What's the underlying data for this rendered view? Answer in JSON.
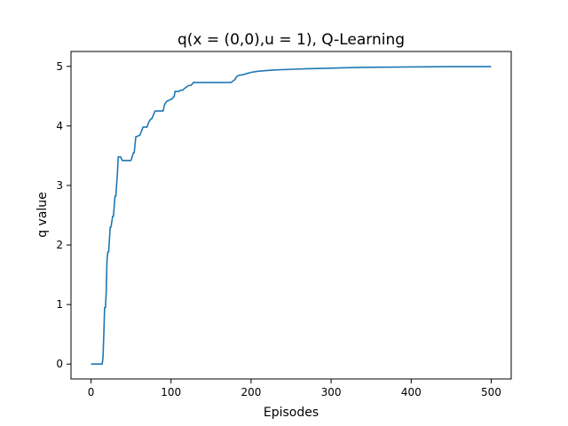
{
  "chart_data": {
    "type": "line",
    "title": "q(x = (0,0),u = 1), Q-Learning",
    "xlabel": "Episodes",
    "ylabel": "q value",
    "xlim": [
      -25,
      525
    ],
    "ylim": [
      -0.25,
      5.25
    ],
    "xticks": [
      0,
      100,
      200,
      300,
      400,
      500
    ],
    "yticks": [
      0,
      1,
      2,
      3,
      4,
      5
    ],
    "xtick_labels": [
      "0",
      "100",
      "200",
      "300",
      "400",
      "500"
    ],
    "ytick_labels": [
      "0",
      "1",
      "2",
      "3",
      "4",
      "5"
    ],
    "grid": false,
    "line_color": "#1f77b4",
    "series": [
      {
        "x": [
          0,
          14,
          15,
          16,
          17,
          18,
          19,
          20,
          21,
          22,
          24,
          25,
          27,
          28,
          30,
          31,
          33,
          34,
          36,
          37,
          39,
          42,
          45,
          50,
          53,
          54,
          56,
          57,
          60,
          61,
          65,
          66,
          70,
          72,
          75,
          76,
          80,
          81,
          84,
          85,
          90,
          92,
          95,
          96,
          100,
          101,
          104,
          105,
          110,
          112,
          115,
          116,
          120,
          122,
          125,
          128,
          135,
          138,
          175,
          178,
          180,
          182,
          185,
          190,
          195,
          200,
          205,
          210,
          220,
          230,
          250,
          270,
          300,
          330,
          350,
          400,
          450,
          500
        ],
        "y": [
          0,
          0,
          0.12,
          0.5,
          0.95,
          0.95,
          1.2,
          1.75,
          1.88,
          1.88,
          2.3,
          2.3,
          2.48,
          2.48,
          2.82,
          2.82,
          3.2,
          3.48,
          3.48,
          3.48,
          3.42,
          3.42,
          3.42,
          3.42,
          3.55,
          3.55,
          3.82,
          3.82,
          3.84,
          3.84,
          3.98,
          3.98,
          3.98,
          4.06,
          4.12,
          4.12,
          4.25,
          4.25,
          4.25,
          4.25,
          4.25,
          4.36,
          4.42,
          4.42,
          4.45,
          4.45,
          4.5,
          4.58,
          4.58,
          4.6,
          4.6,
          4.62,
          4.66,
          4.68,
          4.68,
          4.73,
          4.73,
          4.73,
          4.73,
          4.76,
          4.78,
          4.83,
          4.85,
          4.86,
          4.88,
          4.9,
          4.91,
          4.92,
          4.93,
          4.94,
          4.95,
          4.96,
          4.97,
          4.98,
          4.985,
          4.99,
          4.995,
          4.995
        ]
      }
    ]
  }
}
